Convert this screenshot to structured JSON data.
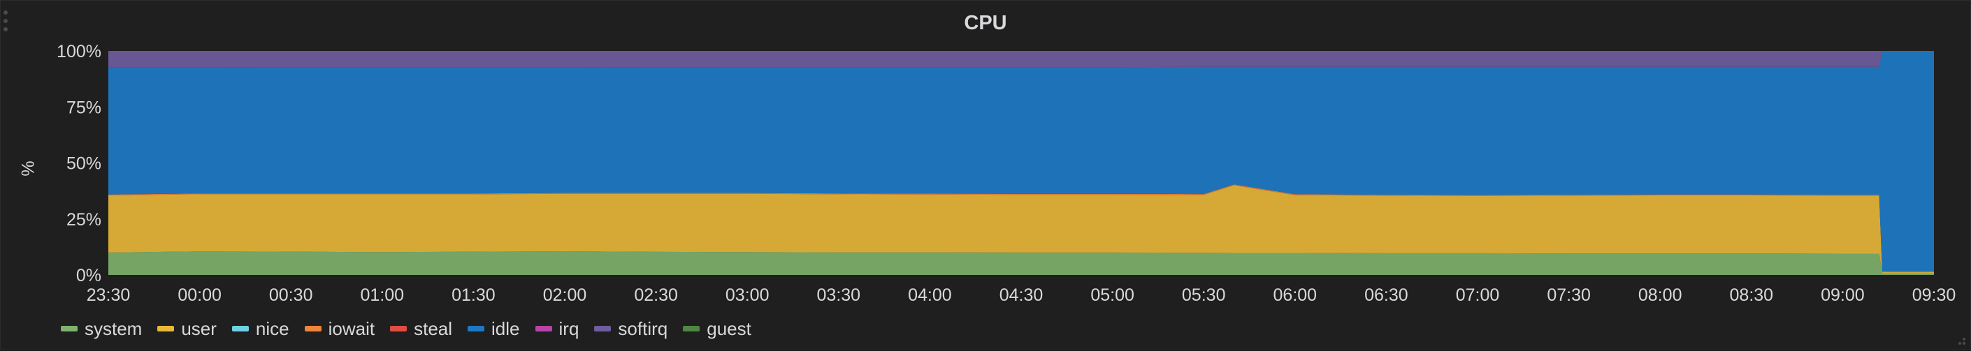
{
  "panel": {
    "title": "CPU"
  },
  "chart_data": {
    "type": "area",
    "stacked": true,
    "title": "CPU",
    "ylabel": "%",
    "xlabel": "",
    "ylim": [
      0,
      100
    ],
    "yticks": [
      "0%",
      "25%",
      "50%",
      "75%",
      "100%"
    ],
    "x_time_range": [
      "23:30",
      "09:30"
    ],
    "xticks": [
      "23:30",
      "00:00",
      "00:30",
      "01:00",
      "01:30",
      "02:00",
      "02:30",
      "03:00",
      "03:30",
      "04:00",
      "04:30",
      "05:00",
      "05:30",
      "06:00",
      "06:30",
      "07:00",
      "07:30",
      "08:00",
      "08:30",
      "09:00",
      "09:30"
    ],
    "grid": false,
    "legend_position": "bottom-left",
    "x": [
      "23:30",
      "00:00",
      "00:30",
      "01:00",
      "01:30",
      "02:00",
      "02:30",
      "03:00",
      "03:30",
      "04:00",
      "04:30",
      "05:00",
      "05:30",
      "05:40",
      "06:00",
      "06:30",
      "07:00",
      "07:30",
      "08:00",
      "08:30",
      "09:00",
      "09:12",
      "09:13",
      "09:30"
    ],
    "series": [
      {
        "name": "system",
        "color": "#7eb26d",
        "values": [
          10,
          10.5,
          10.4,
          10.2,
          10.4,
          10.6,
          10.3,
          10.2,
          10.1,
          10.1,
          10.0,
          10.0,
          9.9,
          9.8,
          9.8,
          9.7,
          9.7,
          9.6,
          9.6,
          9.6,
          9.5,
          9.5,
          0.6,
          0.6
        ]
      },
      {
        "name": "user",
        "color": "#eab839",
        "values": [
          25.5,
          25.5,
          25.6,
          25.8,
          25.6,
          25.6,
          25.9,
          26.0,
          25.9,
          25.8,
          25.8,
          25.8,
          25.8,
          30.2,
          25.8,
          25.7,
          25.6,
          25.8,
          25.9,
          25.9,
          25.9,
          25.9,
          0.8,
          0.8
        ]
      },
      {
        "name": "nice",
        "color": "#6ed0e0",
        "values": [
          0,
          0,
          0,
          0,
          0,
          0,
          0,
          0,
          0,
          0,
          0,
          0,
          0,
          0,
          0,
          0,
          0,
          0,
          0,
          0,
          0,
          0,
          0,
          0
        ]
      },
      {
        "name": "iowait",
        "color": "#ef843c",
        "values": [
          0.4,
          0.4,
          0.4,
          0.4,
          0.4,
          0.4,
          0.4,
          0.4,
          0.4,
          0.4,
          0.4,
          0.4,
          0.4,
          0.4,
          0.4,
          0.4,
          0.4,
          0.4,
          0.4,
          0.4,
          0.4,
          0.4,
          0,
          0
        ]
      },
      {
        "name": "steal",
        "color": "#e24d42",
        "values": [
          0,
          0,
          0,
          0,
          0,
          0,
          0,
          0,
          0,
          0,
          0,
          0,
          0,
          0,
          0,
          0,
          0,
          0,
          0,
          0,
          0,
          0,
          0,
          0
        ]
      },
      {
        "name": "idle",
        "color": "#1f78c1",
        "values": [
          56.8,
          56.3,
          56.4,
          56.4,
          56.4,
          56.2,
          56.1,
          56.2,
          56.4,
          56.5,
          56.6,
          56.6,
          56.8,
          52.5,
          56.9,
          57.1,
          57.2,
          57.1,
          57.0,
          57.0,
          57.1,
          57.1,
          98.6,
          98.6
        ]
      },
      {
        "name": "irq",
        "color": "#ba43a9",
        "values": [
          0,
          0,
          0,
          0,
          0,
          0,
          0,
          0,
          0,
          0,
          0,
          0,
          0,
          0,
          0,
          0,
          0,
          0,
          0,
          0,
          0,
          0,
          0,
          0
        ]
      },
      {
        "name": "softirq",
        "color": "#705da0",
        "values": [
          7.3,
          7.3,
          7.2,
          7.2,
          7.2,
          7.2,
          7.3,
          7.2,
          7.2,
          7.2,
          7.2,
          7.2,
          7.1,
          7.1,
          7.1,
          7.1,
          7.1,
          7.1,
          7.1,
          7.1,
          7.1,
          7.1,
          0,
          0
        ]
      },
      {
        "name": "guest",
        "color": "#508642",
        "values": [
          0,
          0,
          0,
          0,
          0,
          0,
          0,
          0,
          0,
          0,
          0,
          0,
          0,
          0,
          0,
          0,
          0,
          0,
          0,
          0,
          0,
          0,
          0,
          0
        ]
      }
    ]
  }
}
